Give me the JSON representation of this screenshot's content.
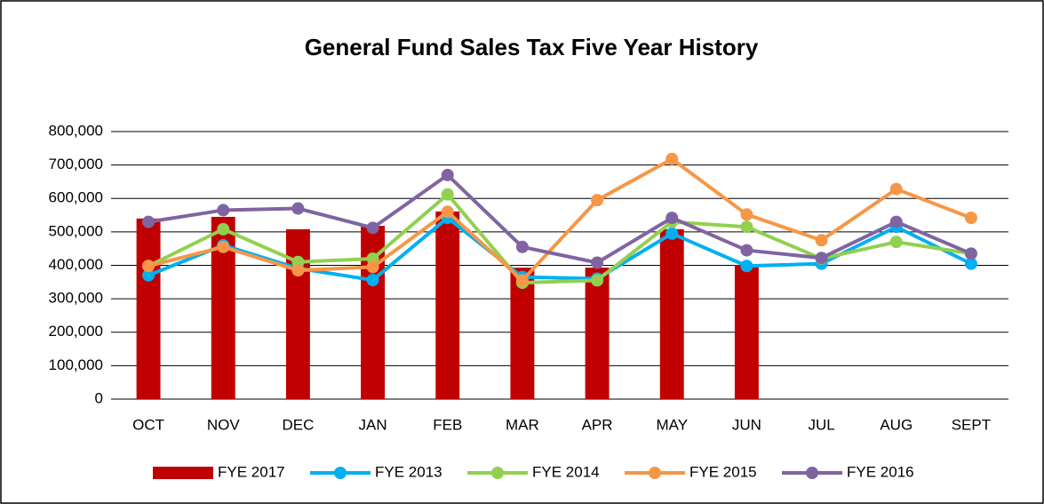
{
  "chart_data": {
    "type": "bar",
    "title": "General Fund Sales Tax Five Year History",
    "categories": [
      "OCT",
      "NOV",
      "DEC",
      "JAN",
      "FEB",
      "MAR",
      "APR",
      "MAY",
      "JUN",
      "JUL",
      "AUG",
      "SEPT"
    ],
    "series": [
      {
        "name": "FYE 2017",
        "type": "bar",
        "color": "#c00000",
        "values": [
          540000,
          545000,
          508000,
          518000,
          561000,
          393000,
          393000,
          508000,
          401000,
          null,
          null,
          null
        ]
      },
      {
        "name": "FYE 2013",
        "type": "line",
        "color": "#00b0f0",
        "values": [
          370000,
          460000,
          391000,
          356000,
          542000,
          365000,
          360000,
          495000,
          398000,
          405000,
          515000,
          405000
        ]
      },
      {
        "name": "FYE 2014",
        "type": "line",
        "color": "#92d050",
        "values": [
          398000,
          508000,
          410000,
          420000,
          612000,
          348000,
          355000,
          530000,
          515000,
          420000,
          470000,
          435000
        ]
      },
      {
        "name": "FYE 2015",
        "type": "line",
        "color": "#f79646",
        "values": [
          398000,
          455000,
          385000,
          395000,
          560000,
          355000,
          595000,
          718000,
          552000,
          475000,
          628000,
          542000
        ]
      },
      {
        "name": "FYE 2016",
        "type": "line",
        "color": "#8064a2",
        "values": [
          530000,
          565000,
          570000,
          512000,
          670000,
          455000,
          408000,
          542000,
          445000,
          422000,
          530000,
          435000
        ]
      }
    ],
    "ylim": [
      0,
      800000
    ],
    "yticks": [
      0,
      {
        "value": 100000,
        "label": "100,000"
      },
      {
        "value": 200000,
        "label": "200,000"
      },
      {
        "value": 300000,
        "label": "300,000"
      },
      {
        "value": 400000,
        "label": "400,000"
      },
      {
        "value": 500000,
        "label": "500,000"
      },
      {
        "value": 600000,
        "label": "600,000"
      },
      {
        "value": 700000,
        "label": "700,000"
      },
      {
        "value": 800000,
        "label": "800,000"
      }
    ],
    "grid": true,
    "legend": "bottom"
  }
}
